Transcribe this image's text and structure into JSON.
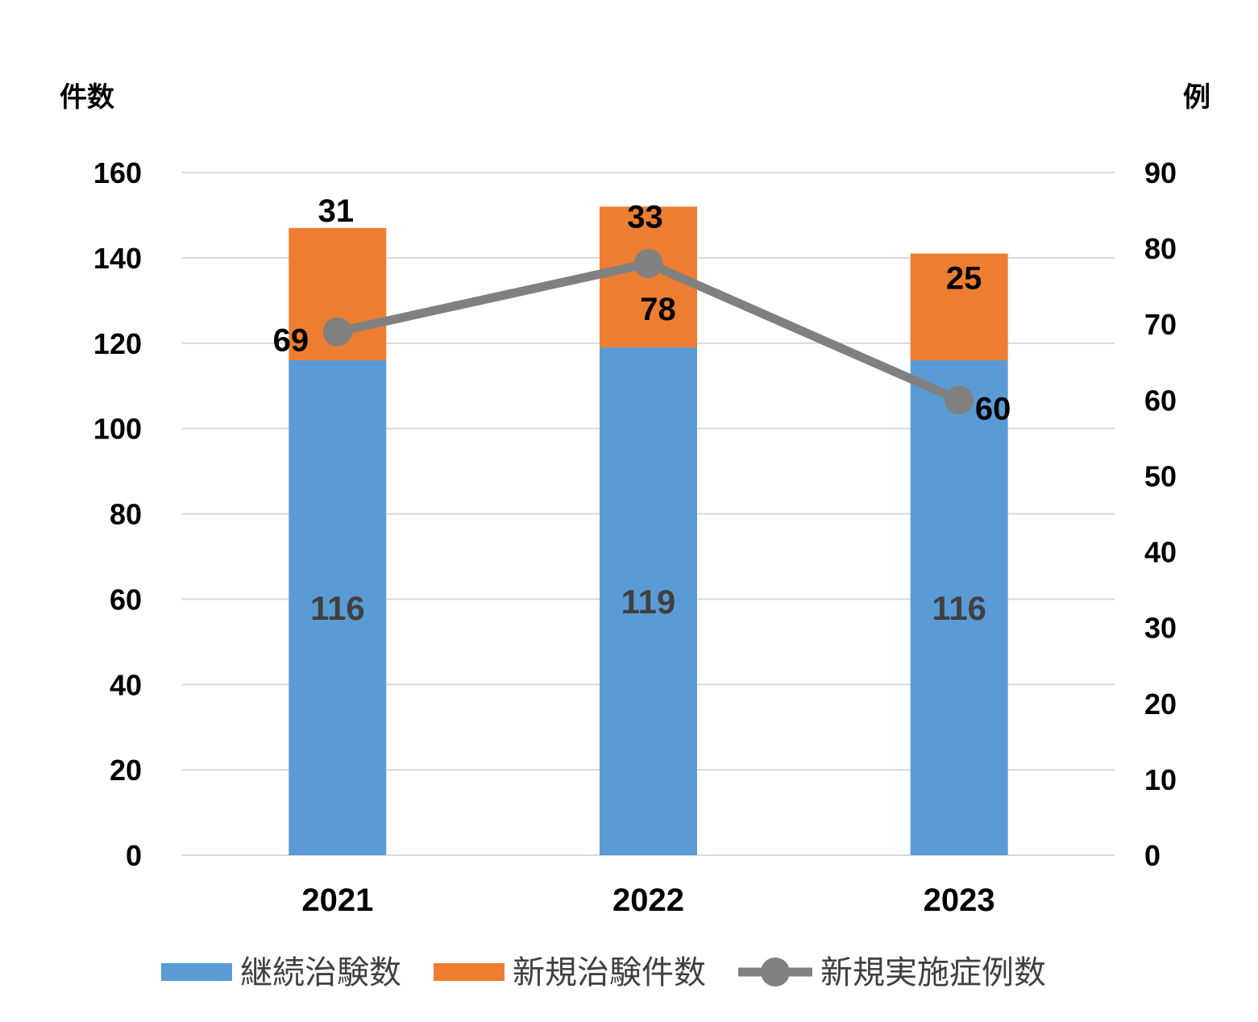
{
  "chart_data": {
    "type": "bar",
    "stacked": true,
    "categories": [
      "2021",
      "2022",
      "2023"
    ],
    "series": [
      {
        "name": "継続治験数",
        "type": "bar",
        "axis": "left",
        "color": "#5B9BD5",
        "values": [
          116,
          119,
          116
        ]
      },
      {
        "name": "新規治験件数",
        "type": "bar",
        "axis": "left",
        "color": "#ED7D31",
        "values": [
          31,
          33,
          25
        ]
      },
      {
        "name": "新規実施症例数",
        "type": "line",
        "axis": "right",
        "color": "#808080",
        "values": [
          69,
          78,
          60
        ]
      }
    ],
    "ylabel": "件数",
    "ylabel_right": "例",
    "ylim": [
      0,
      160
    ],
    "ylim_right": [
      0,
      90
    ],
    "yticks": [
      "0",
      "20",
      "40",
      "60",
      "80",
      "100",
      "120",
      "140",
      "160"
    ],
    "yticks_right": [
      "0",
      "10",
      "20",
      "30",
      "40",
      "50",
      "60",
      "70",
      "80",
      "90"
    ],
    "grid": true,
    "legend": "bottom"
  }
}
